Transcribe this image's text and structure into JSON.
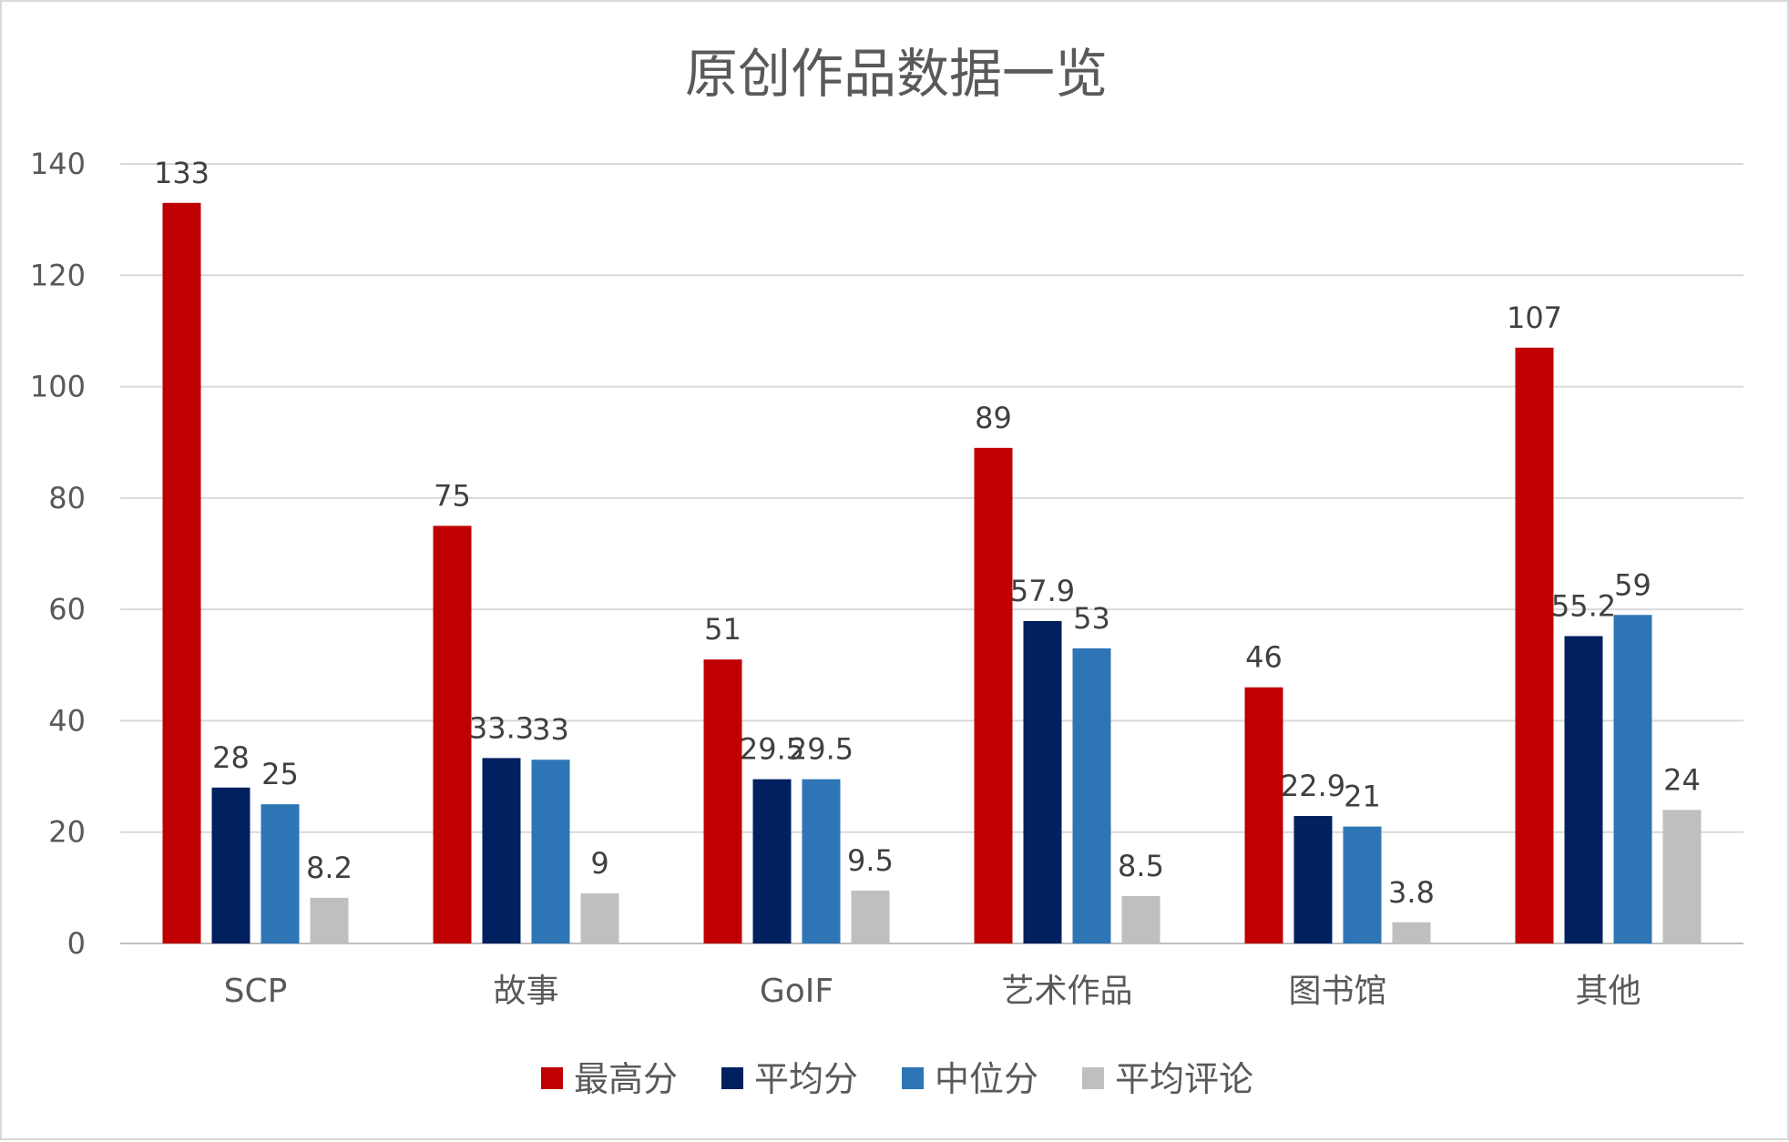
{
  "chart_data": {
    "type": "bar",
    "title": "原创作品数据一览",
    "categories": [
      "SCP",
      "故事",
      "GoIF",
      "艺术作品",
      "图书馆",
      "其他"
    ],
    "series": [
      {
        "name": "最高分",
        "color": "#C00000",
        "values": [
          133,
          75,
          51,
          89,
          46,
          107
        ]
      },
      {
        "name": "平均分",
        "color": "#002060",
        "values": [
          28,
          33.3,
          29.5,
          57.9,
          22.9,
          55.2
        ]
      },
      {
        "name": "中位分",
        "color": "#2E75B6",
        "values": [
          25,
          33,
          29.5,
          53,
          21,
          59
        ]
      },
      {
        "name": "平均评论",
        "color": "#BFBFBF",
        "values": [
          8.2,
          9,
          9.5,
          8.5,
          3.8,
          24
        ]
      }
    ],
    "ylim": [
      0,
      140
    ],
    "yticks": [
      0,
      20,
      40,
      60,
      80,
      100,
      120,
      140
    ],
    "grid": true,
    "legend": "bottom"
  }
}
